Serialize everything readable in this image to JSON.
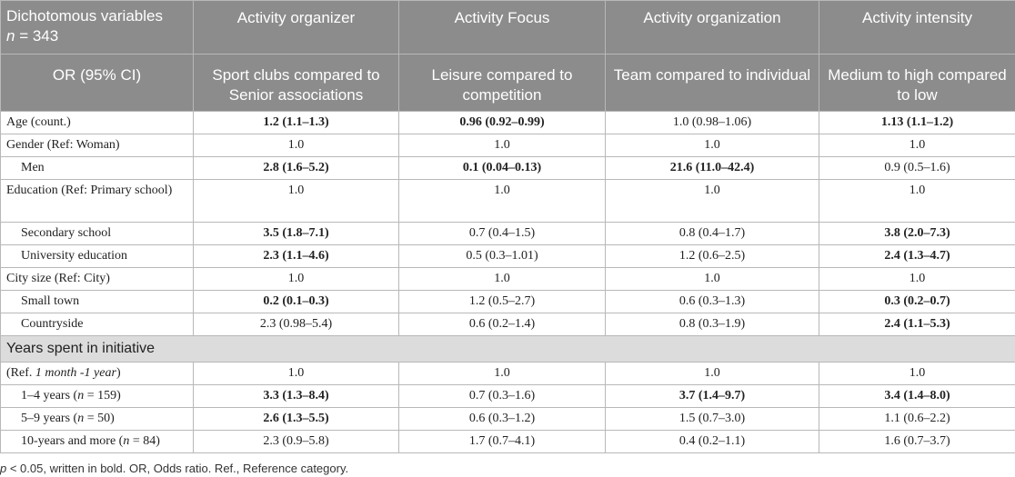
{
  "header": {
    "row1": {
      "first_line1": "Dichotomous variables",
      "first_n_symbol": "n",
      "first_n_value": " = 343",
      "cols": [
        "Activity organizer",
        "Activity Focus",
        "Activity organization",
        "Activity intensity"
      ]
    },
    "row2": {
      "first": "OR (95% CI)",
      "cols": [
        "Sport clubs compared to Senior associations",
        "Leisure compared to competition",
        "Team compared to individual",
        "Medium to high compared to low"
      ]
    }
  },
  "rows_a": [
    {
      "label": "Age (count.)",
      "indent": false,
      "tall": false,
      "cells": [
        {
          "text": "1.2 (1.1–1.3)",
          "bold": true
        },
        {
          "text": "0.96 (0.92–0.99)",
          "bold": true
        },
        {
          "text": "1.0 (0.98–1.06)",
          "bold": false
        },
        {
          "text": "1.13 (1.1–1.2)",
          "bold": true
        }
      ]
    },
    {
      "label": "Gender (Ref: Woman)",
      "indent": false,
      "tall": false,
      "cells": [
        {
          "text": "1.0",
          "bold": false
        },
        {
          "text": "1.0",
          "bold": false
        },
        {
          "text": "1.0",
          "bold": false
        },
        {
          "text": "1.0",
          "bold": false
        }
      ]
    },
    {
      "label": "Men",
      "indent": true,
      "tall": false,
      "cells": [
        {
          "text": "2.8 (1.6–5.2)",
          "bold": true
        },
        {
          "text": "0.1 (0.04–0.13)",
          "bold": true
        },
        {
          "text": "21.6 (11.0–42.4)",
          "bold": true
        },
        {
          "text": "0.9 (0.5–1.6)",
          "bold": false
        }
      ]
    },
    {
      "label": "Education (Ref: Primary school)",
      "indent": false,
      "tall": true,
      "cells": [
        {
          "text": "1.0",
          "bold": false
        },
        {
          "text": "1.0",
          "bold": false
        },
        {
          "text": "1.0",
          "bold": false
        },
        {
          "text": "1.0",
          "bold": false
        }
      ]
    },
    {
      "label": "Secondary school",
      "indent": true,
      "tall": false,
      "cells": [
        {
          "text": "3.5 (1.8–7.1)",
          "bold": true
        },
        {
          "text": "0.7 (0.4–1.5)",
          "bold": false
        },
        {
          "text": "0.8 (0.4–1.7)",
          "bold": false
        },
        {
          "text": "3.8 (2.0–7.3)",
          "bold": true
        }
      ]
    },
    {
      "label": "University education",
      "indent": true,
      "tall": false,
      "cells": [
        {
          "text": "2.3 (1.1–4.6)",
          "bold": true
        },
        {
          "text": "0.5 (0.3–1.01)",
          "bold": false
        },
        {
          "text": "1.2 (0.6–2.5)",
          "bold": false
        },
        {
          "text": "2.4 (1.3–4.7)",
          "bold": true
        }
      ]
    },
    {
      "label": "City size (Ref: City)",
      "indent": false,
      "tall": false,
      "cells": [
        {
          "text": "1.0",
          "bold": false
        },
        {
          "text": "1.0",
          "bold": false
        },
        {
          "text": "1.0",
          "bold": false
        },
        {
          "text": "1.0",
          "bold": false
        }
      ]
    },
    {
      "label": "Small town",
      "indent": true,
      "tall": false,
      "cells": [
        {
          "text": "0.2 (0.1–0.3)",
          "bold": true
        },
        {
          "text": "1.2 (0.5–2.7)",
          "bold": false
        },
        {
          "text": "0.6 (0.3–1.3)",
          "bold": false
        },
        {
          "text": "0.3 (0.2–0.7)",
          "bold": true
        }
      ]
    },
    {
      "label": "Countryside",
      "indent": true,
      "tall": false,
      "cells": [
        {
          "text": "2.3 (0.98–5.4)",
          "bold": false
        },
        {
          "text": "0.6 (0.2–1.4)",
          "bold": false
        },
        {
          "text": "0.8 (0.3–1.9)",
          "bold": false
        },
        {
          "text": "2.4 (1.1–5.3)",
          "bold": true
        }
      ]
    }
  ],
  "section_title": "Years spent in initiative",
  "ref_row": {
    "prefix": "(Ref. ",
    "italic": "1 month -1 year",
    "suffix": ")",
    "cells": [
      {
        "text": "1.0",
        "bold": false
      },
      {
        "text": "1.0",
        "bold": false
      },
      {
        "text": "1.0",
        "bold": false
      },
      {
        "text": "1.0",
        "bold": false
      }
    ]
  },
  "rows_b": [
    {
      "label_pre": "1–4 years (",
      "label_n": "n",
      "label_post": " = 159)",
      "cells": [
        {
          "text": "3.3 (1.3–8.4)",
          "bold": true
        },
        {
          "text": "0.7 (0.3–1.6)",
          "bold": false
        },
        {
          "text": "3.7 (1.4–9.7)",
          "bold": true
        },
        {
          "text": "3.4 (1.4–8.0)",
          "bold": true
        }
      ]
    },
    {
      "label_pre": "5–9 years (",
      "label_n": "n",
      "label_post": " = 50)",
      "cells": [
        {
          "text": "2.6 (1.3–5.5)",
          "bold": true
        },
        {
          "text": "0.6 (0.3–1.2)",
          "bold": false
        },
        {
          "text": "1.5 (0.7–3.0)",
          "bold": false
        },
        {
          "text": "1.1 (0.6–2.2)",
          "bold": false
        }
      ]
    },
    {
      "label_pre": "10-years and more (",
      "label_n": "n",
      "label_post": " = 84)",
      "cells": [
        {
          "text": "2.3 (0.9–5.8)",
          "bold": false
        },
        {
          "text": "1.7 (0.7–4.1)",
          "bold": false
        },
        {
          "text": "0.4 (0.2–1.1)",
          "bold": false
        },
        {
          "text": "1.6 (0.7–3.7)",
          "bold": false
        }
      ]
    }
  ],
  "footnote": {
    "p_symbol": "p",
    "text": " < 0.05, written in bold. OR, Odds ratio. Ref., Reference category."
  }
}
